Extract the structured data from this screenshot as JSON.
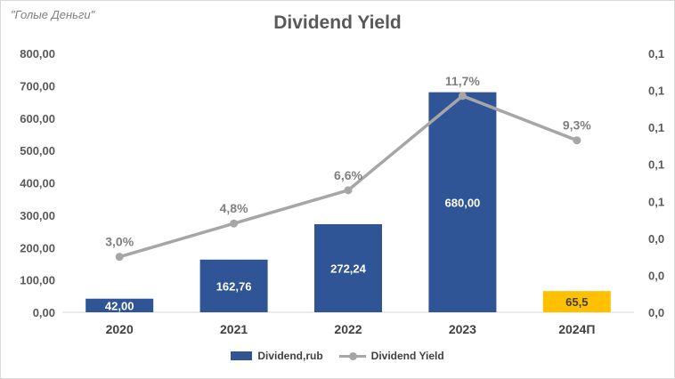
{
  "watermark": "\"Голые Деньги\"",
  "chart_data": {
    "type": "bar+line",
    "title": "Dividend Yield",
    "categories": [
      "2020",
      "2021",
      "2022",
      "2023",
      "2024П"
    ],
    "series": [
      {
        "name": "Dividend,rub",
        "kind": "bar",
        "axis": "left",
        "values": [
          42.0,
          162.76,
          272.24,
          680.0,
          65.5
        ],
        "labels": [
          "42,00",
          "162,76",
          "272,24",
          "680,00",
          "65,5"
        ],
        "colors": [
          "#2f5597",
          "#2f5597",
          "#2f5597",
          "#2f5597",
          "#ffc000"
        ],
        "label_colors": [
          "#ffffff",
          "#ffffff",
          "#ffffff",
          "#ffffff",
          "#404040"
        ]
      },
      {
        "name": "Dividend Yield",
        "kind": "line",
        "axis": "right",
        "color": "#a6a6a6",
        "values": [
          0.03,
          0.048,
          0.066,
          0.117,
          0.093
        ],
        "labels": [
          "3,0%",
          "4,8%",
          "6,6%",
          "11,7%",
          "9,3%"
        ]
      }
    ],
    "y_left": {
      "range": [
        0,
        800
      ],
      "ticks": [
        0,
        100,
        200,
        300,
        400,
        500,
        600,
        700,
        800
      ],
      "tick_labels": [
        "0,00",
        "100,00",
        "200,00",
        "300,00",
        "400,00",
        "500,00",
        "600,00",
        "700,00",
        "800,00"
      ]
    },
    "y_right": {
      "range": [
        0,
        0.14
      ],
      "ticks": [
        0,
        0.02,
        0.04,
        0.06,
        0.08,
        0.1,
        0.12,
        0.14
      ],
      "tick_labels": [
        "0,0",
        "0,0",
        "0,0",
        "0,1",
        "0,1",
        "0,1",
        "0,1",
        "0,1"
      ]
    },
    "grid": false,
    "legend": "bottom"
  }
}
